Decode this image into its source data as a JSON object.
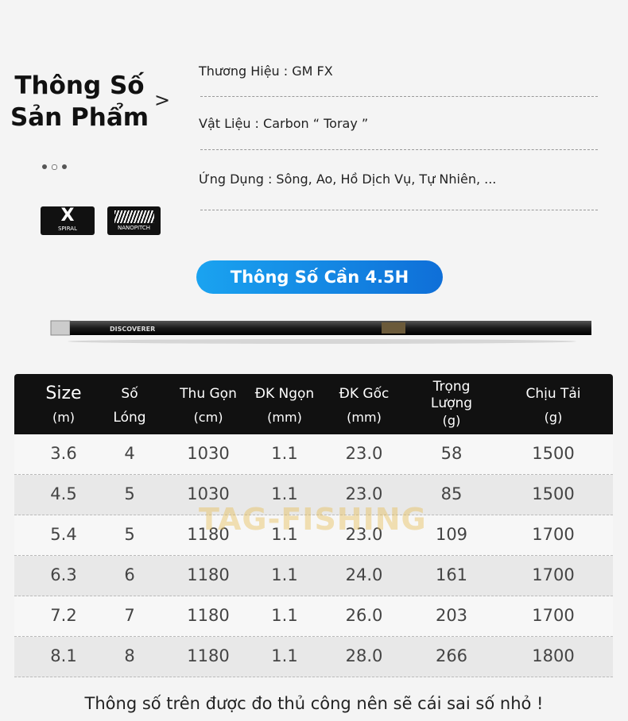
{
  "header": {
    "title_lines": [
      "Thông Số",
      "Sản Phẩm"
    ],
    "arrow": ">"
  },
  "specs": [
    "Thương Hiệu : GM FX",
    "Vật Liệu : Carbon “ Toray ”",
    "Ứng Dụng : Sông, Ao, Hồ Dịch Vụ, Tự Nhiên, ..."
  ],
  "logos": {
    "x_spiral": {
      "mark": "X",
      "label": "SPIRAL"
    },
    "nanopitch": "NANOPITCH"
  },
  "button": "Thông Số Cần 4.5H",
  "rod_label": "DISCOVERER",
  "table": {
    "headers": [
      [
        "Size",
        "(m)"
      ],
      [
        "Số",
        "Lóng"
      ],
      [
        "Thu Gọn",
        "(cm)"
      ],
      [
        "ĐK Ngọn",
        "(mm)"
      ],
      [
        "ĐK Gốc",
        "(mm)"
      ],
      [
        "Trọng",
        "Lượng",
        "(g)"
      ],
      [
        "Chịu Tải",
        "(g)"
      ]
    ],
    "rows": [
      [
        "3.6",
        "4",
        "1030",
        "1.1",
        "23.0",
        "58",
        "1500"
      ],
      [
        "4.5",
        "5",
        "1030",
        "1.1",
        "23.0",
        "85",
        "1500"
      ],
      [
        "5.4",
        "5",
        "1180",
        "1.1",
        "23.0",
        "109",
        "1700"
      ],
      [
        "6.3",
        "6",
        "1180",
        "1.1",
        "24.0",
        "161",
        "1700"
      ],
      [
        "7.2",
        "7",
        "1180",
        "1.1",
        "26.0",
        "203",
        "1700"
      ],
      [
        "8.1",
        "8",
        "1180",
        "1.1",
        "28.0",
        "266",
        "1800"
      ]
    ]
  },
  "watermark": "TAG-FISHING",
  "footnote": "Thông số trên được đo thủ công nên sẽ cái sai số nhỏ !"
}
